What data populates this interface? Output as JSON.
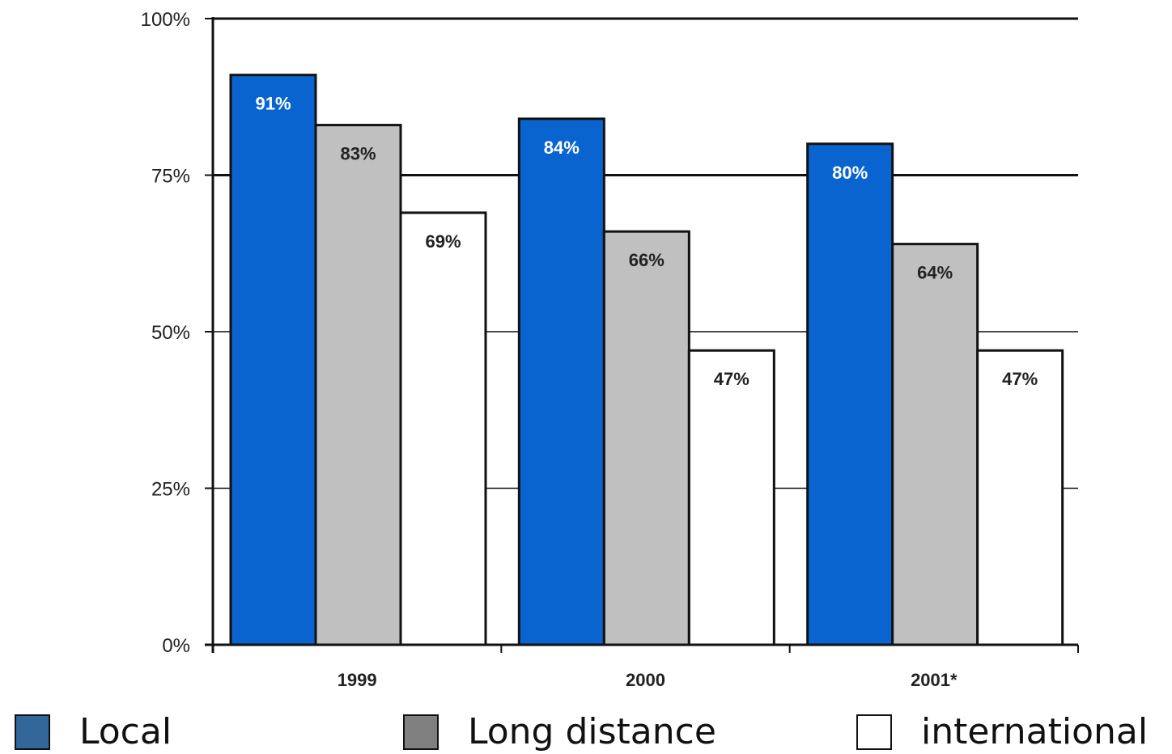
{
  "chart_data": {
    "type": "bar",
    "categories": [
      "1999",
      "2000",
      "2001*"
    ],
    "series": [
      {
        "name": "Local",
        "values": [
          91,
          84,
          80
        ],
        "labels": [
          "91%",
          "84%",
          "80%"
        ],
        "color": "#0a64d0",
        "label_color": "#ffffff"
      },
      {
        "name": "Long distance",
        "values": [
          83,
          66,
          64
        ],
        "labels": [
          "83%",
          "66%",
          "64%"
        ],
        "color": "#c0c0c0",
        "label_color": "#222222"
      },
      {
        "name": "international",
        "values": [
          69,
          47,
          47
        ],
        "labels": [
          "69%",
          "47%",
          "47%"
        ],
        "color": "#ffffff",
        "label_color": "#222222"
      }
    ],
    "y_ticks": [
      "0%",
      "25%",
      "50%",
      "75%",
      "100%"
    ],
    "ylim": [
      0,
      100
    ],
    "grid": true,
    "legend_position": "bottom"
  },
  "legend": {
    "items": [
      {
        "label": "Local",
        "color": "#336699"
      },
      {
        "label": "Long distance",
        "color": "#808080"
      },
      {
        "label": "international",
        "color": "#ffffff"
      }
    ]
  }
}
